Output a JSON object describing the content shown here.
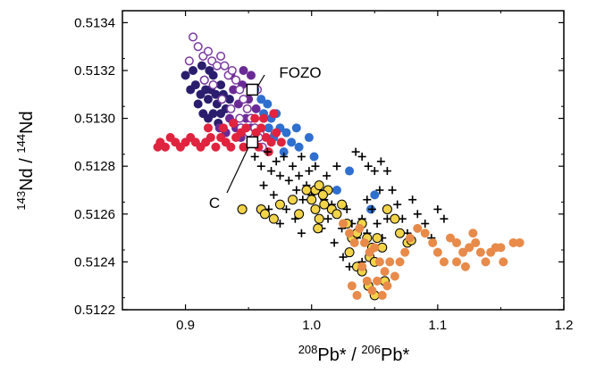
{
  "chart_data": {
    "type": "scatter",
    "xlabel": {
      "sup1": "208",
      "main1": "Pb* / ",
      "sup2": "206",
      "main2": "Pb*"
    },
    "ylabel": {
      "sup1": "143",
      "main1": "Nd / ",
      "sup2": "144",
      "main2": "Nd"
    },
    "xlim": [
      0.85,
      1.2
    ],
    "ylim": [
      0.5122,
      0.51345
    ],
    "x_ticks": [
      "0.9",
      "1.0",
      "1.1",
      "1.2"
    ],
    "y_ticks": [
      "0.5122",
      "0.5124",
      "0.5126",
      "0.5128",
      "0.5130",
      "0.5132",
      "0.5134"
    ],
    "grid": false,
    "annotations": [
      {
        "text": "FOZO",
        "x": 0.953,
        "y": 0.51312
      },
      {
        "text": "C",
        "x": 0.953,
        "y": 0.5129
      }
    ],
    "colors": {
      "navy": "#2a1d6e",
      "purple": "#6a2a95",
      "open_purple": "#7a3aa0",
      "blue": "#2f6fcf",
      "red": "#e0233e",
      "black": "#000000",
      "yellow": "#f2d44a",
      "orange": "#e88a4a"
    },
    "series": [
      {
        "marker": "filled-circle",
        "color": "navy",
        "points": [
          [
            0.9,
            0.51318
          ],
          [
            0.904,
            0.51312
          ],
          [
            0.908,
            0.51314
          ],
          [
            0.912,
            0.5131
          ],
          [
            0.915,
            0.51316
          ],
          [
            0.918,
            0.51308
          ],
          [
            0.92,
            0.51312
          ],
          [
            0.922,
            0.51318
          ],
          [
            0.925,
            0.51306
          ],
          [
            0.928,
            0.51314
          ],
          [
            0.93,
            0.5131
          ],
          [
            0.932,
            0.51304
          ],
          [
            0.91,
            0.51306
          ],
          [
            0.914,
            0.51302
          ],
          [
            0.918,
            0.513
          ],
          [
            0.922,
            0.51302
          ],
          [
            0.926,
            0.51298
          ],
          [
            0.906,
            0.5132
          ],
          [
            0.913,
            0.51322
          ],
          [
            0.919,
            0.5132
          ],
          [
            0.916,
            0.51312
          ],
          [
            0.924,
            0.5131
          ],
          [
            0.935,
            0.51308
          ],
          [
            0.928,
            0.51302
          ]
        ]
      },
      {
        "marker": "filled-circle",
        "color": "purple",
        "points": [
          [
            0.938,
            0.51312
          ],
          [
            0.942,
            0.51306
          ],
          [
            0.945,
            0.51314
          ],
          [
            0.948,
            0.513
          ],
          [
            0.95,
            0.51308
          ],
          [
            0.94,
            0.51296
          ],
          [
            0.935,
            0.513
          ],
          [
            0.952,
            0.51296
          ],
          [
            0.944,
            0.51292
          ],
          [
            0.932,
            0.51294
          ],
          [
            0.927,
            0.51296
          ],
          [
            0.956,
            0.51304
          ],
          [
            0.946,
            0.5132
          ],
          [
            0.952,
            0.51318
          ],
          [
            0.936,
            0.51318
          ]
        ]
      },
      {
        "marker": "open-circle",
        "color": "open_purple",
        "points": [
          [
            0.906,
            0.51334
          ],
          [
            0.91,
            0.5133
          ],
          [
            0.914,
            0.51326
          ],
          [
            0.918,
            0.51328
          ],
          [
            0.921,
            0.51324
          ],
          [
            0.925,
            0.51322
          ],
          [
            0.928,
            0.51326
          ],
          [
            0.931,
            0.51322
          ],
          [
            0.934,
            0.51318
          ],
          [
            0.937,
            0.5132
          ],
          [
            0.94,
            0.51316
          ],
          [
            0.943,
            0.51312
          ],
          [
            0.946,
            0.51308
          ],
          [
            0.949,
            0.51304
          ],
          [
            0.952,
            0.513
          ],
          [
            0.955,
            0.51296
          ],
          [
            0.958,
            0.51292
          ],
          [
            0.961,
            0.51288
          ],
          [
            0.915,
            0.51316
          ],
          [
            0.922,
            0.51314
          ],
          [
            0.929,
            0.51308
          ],
          [
            0.936,
            0.51304
          ],
          [
            0.943,
            0.513
          ],
          [
            0.95,
            0.51294
          ],
          [
            0.944,
            0.51296
          ],
          [
            0.938,
            0.51298
          ],
          [
            0.903,
            0.51324
          ],
          [
            0.957,
            0.51312
          ],
          [
            0.962,
            0.513
          ],
          [
            0.965,
            0.51294
          ]
        ]
      },
      {
        "marker": "filled-circle",
        "color": "blue",
        "points": [
          [
            0.955,
            0.51312
          ],
          [
            0.96,
            0.51308
          ],
          [
            0.965,
            0.51306
          ],
          [
            0.968,
            0.513
          ],
          [
            0.972,
            0.51302
          ],
          [
            0.975,
            0.51296
          ],
          [
            0.98,
            0.51294
          ],
          [
            0.984,
            0.5129
          ],
          [
            0.988,
            0.51296
          ],
          [
            0.97,
            0.51292
          ],
          [
            0.978,
            0.51286
          ],
          [
            0.962,
            0.51302
          ],
          [
            0.966,
            0.51296
          ],
          [
            0.99,
            0.51288
          ],
          [
            1.002,
            0.51284
          ],
          [
            1.03,
            0.51278
          ],
          [
            1.05,
            0.51268
          ],
          [
            1.02,
            0.5127
          ],
          [
            1.047,
            0.51262
          ],
          [
            0.998,
            0.51292
          ]
        ]
      },
      {
        "marker": "filled-circle",
        "color": "red",
        "points": [
          [
            0.88,
            0.5129
          ],
          [
            0.884,
            0.51288
          ],
          [
            0.888,
            0.51292
          ],
          [
            0.892,
            0.5129
          ],
          [
            0.896,
            0.51288
          ],
          [
            0.9,
            0.5129
          ],
          [
            0.904,
            0.51292
          ],
          [
            0.908,
            0.5129
          ],
          [
            0.912,
            0.51288
          ],
          [
            0.916,
            0.5129
          ],
          [
            0.92,
            0.51292
          ],
          [
            0.924,
            0.51288
          ],
          [
            0.928,
            0.51292
          ],
          [
            0.932,
            0.5129
          ],
          [
            0.936,
            0.51288
          ],
          [
            0.94,
            0.51292
          ],
          [
            0.944,
            0.51294
          ],
          [
            0.948,
            0.51296
          ],
          [
            0.952,
            0.5129
          ],
          [
            0.956,
            0.51294
          ],
          [
            0.96,
            0.51296
          ],
          [
            0.964,
            0.51292
          ],
          [
            0.968,
            0.5129
          ],
          [
            0.972,
            0.51294
          ],
          [
            0.976,
            0.5129
          ],
          [
            0.93,
            0.51296
          ],
          [
            0.938,
            0.51298
          ],
          [
            0.946,
            0.51288
          ],
          [
            0.958,
            0.51288
          ],
          [
            0.966,
            0.51286
          ],
          [
            0.955,
            0.513
          ],
          [
            0.962,
            0.513
          ],
          [
            0.918,
            0.51296
          ],
          [
            0.878,
            0.51288
          ],
          [
            0.97,
            0.51302
          ]
        ]
      },
      {
        "marker": "plus",
        "color": "black",
        "points": [
          [
            0.955,
            0.51284
          ],
          [
            0.96,
            0.5128
          ],
          [
            0.965,
            0.51286
          ],
          [
            0.968,
            0.51278
          ],
          [
            0.972,
            0.51282
          ],
          [
            0.975,
            0.51276
          ],
          [
            0.978,
            0.51284
          ],
          [
            0.982,
            0.51274
          ],
          [
            0.985,
            0.5128
          ],
          [
            0.988,
            0.5127
          ],
          [
            0.99,
            0.51276
          ],
          [
            0.993,
            0.51266
          ],
          [
            0.996,
            0.51272
          ],
          [
            1.0,
            0.51268
          ],
          [
            1.003,
            0.51262
          ],
          [
            1.006,
            0.5127
          ],
          [
            1.01,
            0.51266
          ],
          [
            1.013,
            0.51258
          ],
          [
            1.016,
            0.51264
          ],
          [
            1.02,
            0.5126
          ],
          [
            1.024,
            0.51254
          ],
          [
            1.028,
            0.51262
          ],
          [
            1.032,
            0.51256
          ],
          [
            1.036,
            0.5125
          ],
          [
            1.04,
            0.51258
          ],
          [
            1.044,
            0.51252
          ],
          [
            1.048,
            0.51262
          ],
          [
            1.052,
            0.51256
          ],
          [
            1.056,
            0.5125
          ],
          [
            1.06,
            0.51258
          ],
          [
            1.064,
            0.5127
          ],
          [
            1.068,
            0.51264
          ],
          [
            1.072,
            0.51258
          ],
          [
            1.076,
            0.51252
          ],
          [
            1.08,
            0.51266
          ],
          [
            1.084,
            0.5126
          ],
          [
            1.09,
            0.51256
          ],
          [
            1.095,
            0.5125
          ],
          [
            1.1,
            0.51262
          ],
          [
            1.105,
            0.51258
          ],
          [
            1.035,
            0.51286
          ],
          [
            1.04,
            0.51284
          ],
          [
            1.045,
            0.5128
          ],
          [
            1.05,
            0.51278
          ],
          [
            1.055,
            0.51282
          ],
          [
            1.06,
            0.51278
          ],
          [
            1.02,
            0.5128
          ],
          [
            1.012,
            0.51276
          ],
          [
            1.003,
            0.5128
          ],
          [
            0.998,
            0.51278
          ],
          [
            0.962,
            0.51272
          ],
          [
            0.97,
            0.51268
          ],
          [
            0.98,
            0.51262
          ],
          [
            0.987,
            0.51258
          ],
          [
            0.992,
            0.51252
          ],
          [
            0.975,
            0.51256
          ],
          [
            0.966,
            0.51262
          ],
          [
            1.025,
            0.51242
          ],
          [
            1.03,
            0.51238
          ],
          [
            1.04,
            0.5124
          ],
          [
            0.992,
            0.51284
          ],
          [
            1.008,
            0.51254
          ],
          [
            1.018,
            0.51248
          ],
          [
            1.044,
            0.51266
          ],
          [
            1.054,
            0.5127
          ]
        ]
      },
      {
        "marker": "filled-circle-outlined",
        "color": "yellow",
        "points": [
          [
            0.945,
            0.51262
          ],
          [
            0.96,
            0.51262
          ],
          [
            0.963,
            0.5126
          ],
          [
            0.97,
            0.51258
          ],
          [
            0.975,
            0.51264
          ],
          [
            0.985,
            0.51266
          ],
          [
            0.99,
            0.5126
          ],
          [
            1.0,
            0.51266
          ],
          [
            1.003,
            0.51262
          ],
          [
            1.006,
            0.51258
          ],
          [
            1.01,
            0.51264
          ],
          [
            1.013,
            0.5127
          ],
          [
            1.016,
            0.51262
          ],
          [
            1.02,
            0.5126
          ],
          [
            1.024,
            0.51264
          ],
          [
            1.028,
            0.51256
          ],
          [
            1.032,
            0.5125
          ],
          [
            1.036,
            0.51252
          ],
          [
            1.04,
            0.51256
          ],
          [
            1.044,
            0.5125
          ],
          [
            1.048,
            0.51246
          ],
          [
            1.052,
            0.5125
          ],
          [
            1.056,
            0.51246
          ],
          [
            1.06,
            0.51262
          ],
          [
            1.066,
            0.51258
          ],
          [
            1.07,
            0.51252
          ],
          [
            1.076,
            0.51248
          ],
          [
            1.079,
            0.51249
          ],
          [
            1.03,
            0.51244
          ],
          [
            1.036,
            0.51238
          ],
          [
            1.04,
            0.51236
          ],
          [
            1.046,
            0.51242
          ],
          [
            1.05,
            0.5124
          ],
          [
            1.005,
            0.51254
          ],
          [
            1.003,
            0.5127
          ],
          [
            1.006,
            0.51272
          ],
          [
            1.009,
            0.51268
          ],
          [
            0.996,
            0.5127
          ],
          [
            1.045,
            0.5123
          ],
          [
            1.05,
            0.51226
          ],
          [
            1.058,
            0.51232
          ]
        ]
      },
      {
        "marker": "filled-circle",
        "color": "orange",
        "points": [
          [
            1.025,
            0.51256
          ],
          [
            1.03,
            0.51252
          ],
          [
            1.034,
            0.51248
          ],
          [
            1.038,
            0.51254
          ],
          [
            1.042,
            0.51248
          ],
          [
            1.046,
            0.51244
          ],
          [
            1.05,
            0.51246
          ],
          [
            1.054,
            0.5124
          ],
          [
            1.058,
            0.51236
          ],
          [
            1.062,
            0.5124
          ],
          [
            1.066,
            0.51234
          ],
          [
            1.07,
            0.5124
          ],
          [
            1.04,
            0.51238
          ],
          [
            1.044,
            0.51232
          ],
          [
            1.048,
            0.51228
          ],
          [
            1.052,
            0.51232
          ],
          [
            1.056,
            0.51226
          ],
          [
            1.06,
            0.5123
          ],
          [
            1.036,
            0.51226
          ],
          [
            1.032,
            0.5123
          ],
          [
            1.11,
            0.5125
          ],
          [
            1.115,
            0.51248
          ],
          [
            1.12,
            0.51244
          ],
          [
            1.125,
            0.51246
          ],
          [
            1.128,
            0.51252
          ],
          [
            1.13,
            0.51248
          ],
          [
            1.134,
            0.51244
          ],
          [
            1.138,
            0.5124
          ],
          [
            1.142,
            0.51244
          ],
          [
            1.146,
            0.51246
          ],
          [
            1.15,
            0.51246
          ],
          [
            1.16,
            0.51248
          ],
          [
            1.165,
            0.51248
          ],
          [
            1.115,
            0.5124
          ],
          [
            1.122,
            0.51238
          ],
          [
            1.105,
            0.5124
          ],
          [
            1.1,
            0.51244
          ],
          [
            1.096,
            0.51248
          ],
          [
            1.09,
            0.51252
          ],
          [
            1.084,
            0.51254
          ],
          [
            1.078,
            0.5125
          ],
          [
            1.074,
            0.51244
          ],
          [
            1.152,
            0.5124
          ]
        ]
      }
    ],
    "markers": [
      {
        "marker": "open-square",
        "x": 0.953,
        "y": 0.51312
      },
      {
        "marker": "open-square",
        "x": 0.953,
        "y": 0.5129
      }
    ]
  }
}
